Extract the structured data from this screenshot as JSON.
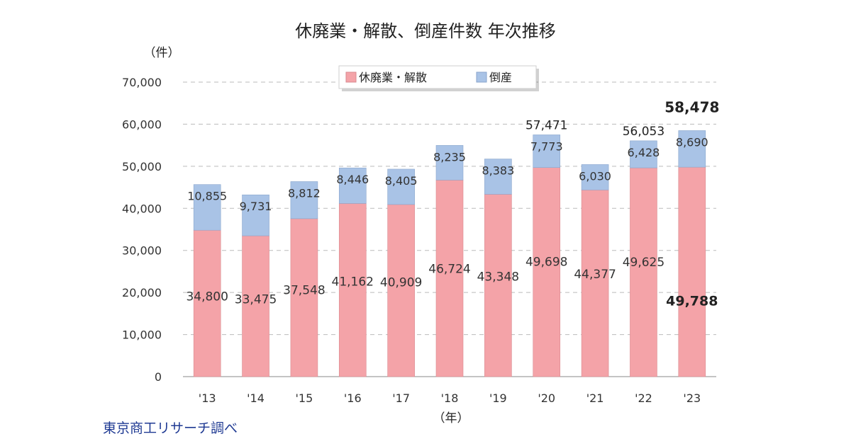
{
  "source": "東京商工リサーチ調べ",
  "chart_data": {
    "type": "bar",
    "stacked": true,
    "title": "休廃業・解散、倒産件数 年次推移",
    "ylabel": "（件）",
    "xlabel": "（年）",
    "ylim": [
      0,
      70000
    ],
    "yticks": [
      0,
      10000,
      20000,
      30000,
      40000,
      50000,
      60000,
      70000
    ],
    "ytick_labels": [
      "0",
      "10,000",
      "20,000",
      "30,000",
      "40,000",
      "50,000",
      "60,000",
      "70,000"
    ],
    "grid": true,
    "legend_position": "top-center",
    "categories": [
      "'13",
      "'14",
      "'15",
      "'16",
      "'17",
      "'18",
      "'19",
      "'20",
      "'21",
      "'22",
      "'23"
    ],
    "series": [
      {
        "name": "休廃業・解散",
        "color": "#f4a3a8",
        "values": [
          34800,
          33475,
          37548,
          41162,
          40909,
          46724,
          43348,
          49698,
          44377,
          49625,
          49788
        ],
        "labels": [
          "34,800",
          "33,475",
          "37,548",
          "41,162",
          "40,909",
          "46,724",
          "43,348",
          "49,698",
          "44,377",
          "49,625",
          "49,788"
        ]
      },
      {
        "name": "倒産",
        "color": "#a9c3e6",
        "values": [
          10855,
          9731,
          8812,
          8446,
          8405,
          8235,
          8383,
          7773,
          6030,
          6428,
          8690
        ],
        "labels": [
          "10,855",
          "9,731",
          "8,812",
          "8,446",
          "8,405",
          "8,235",
          "8,383",
          "7,773",
          "6,030",
          "6,428",
          "8,690"
        ]
      }
    ],
    "total_labels": [
      {
        "index": 7,
        "label": "57,471"
      },
      {
        "index": 9,
        "label": "56,053"
      },
      {
        "index": 10,
        "label": "58,478"
      }
    ]
  }
}
